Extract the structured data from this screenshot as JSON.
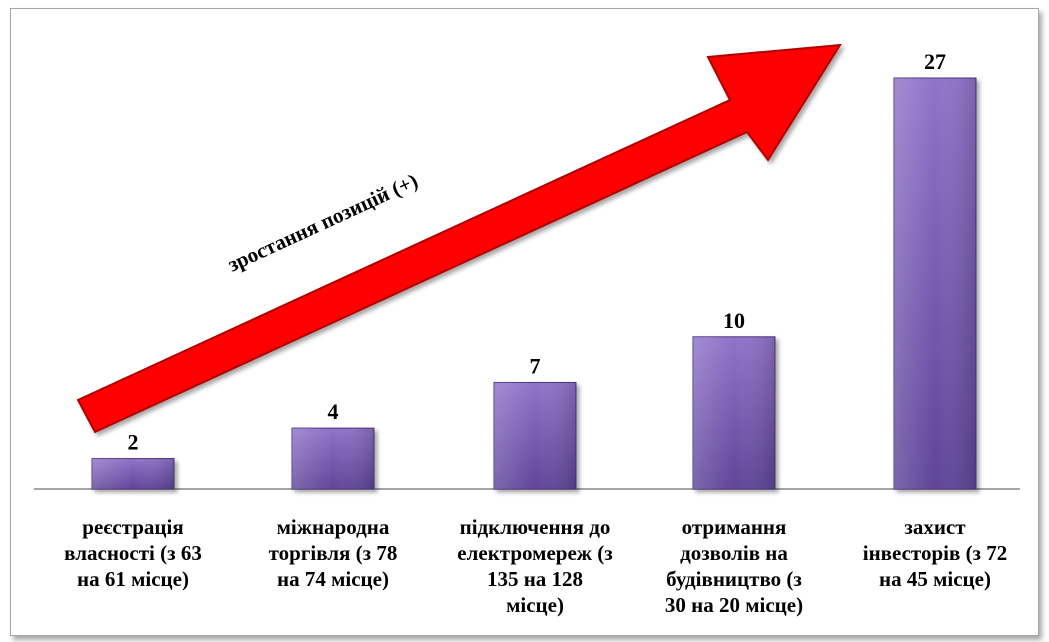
{
  "chart_data": {
    "type": "bar",
    "categories": [
      "реєстрація\nвласності (з 63\nна 61 місце)",
      "міжнародна\nторгівля (з 78\nна 74 місце)",
      "підключення до\nелектромереж (з\n135 на 128\nмісце)",
      "отримання\nдозволів на\nбудівництво (з\n30 на 20 місце)",
      "захист\nінвесторів (з 72\nна 45 місце)"
    ],
    "values": [
      2,
      4,
      7,
      10,
      27
    ],
    "value_labels": [
      "2",
      "4",
      "7",
      "10",
      "27"
    ],
    "ylim": [
      0,
      27
    ],
    "grid": false,
    "annotation": "зростання позицій (+)",
    "colors": {
      "bar_top": "#8f73c9",
      "bar_bottom": "#5f4599",
      "arrow": "#ff0000",
      "arrow_outline": "#b00000"
    }
  }
}
